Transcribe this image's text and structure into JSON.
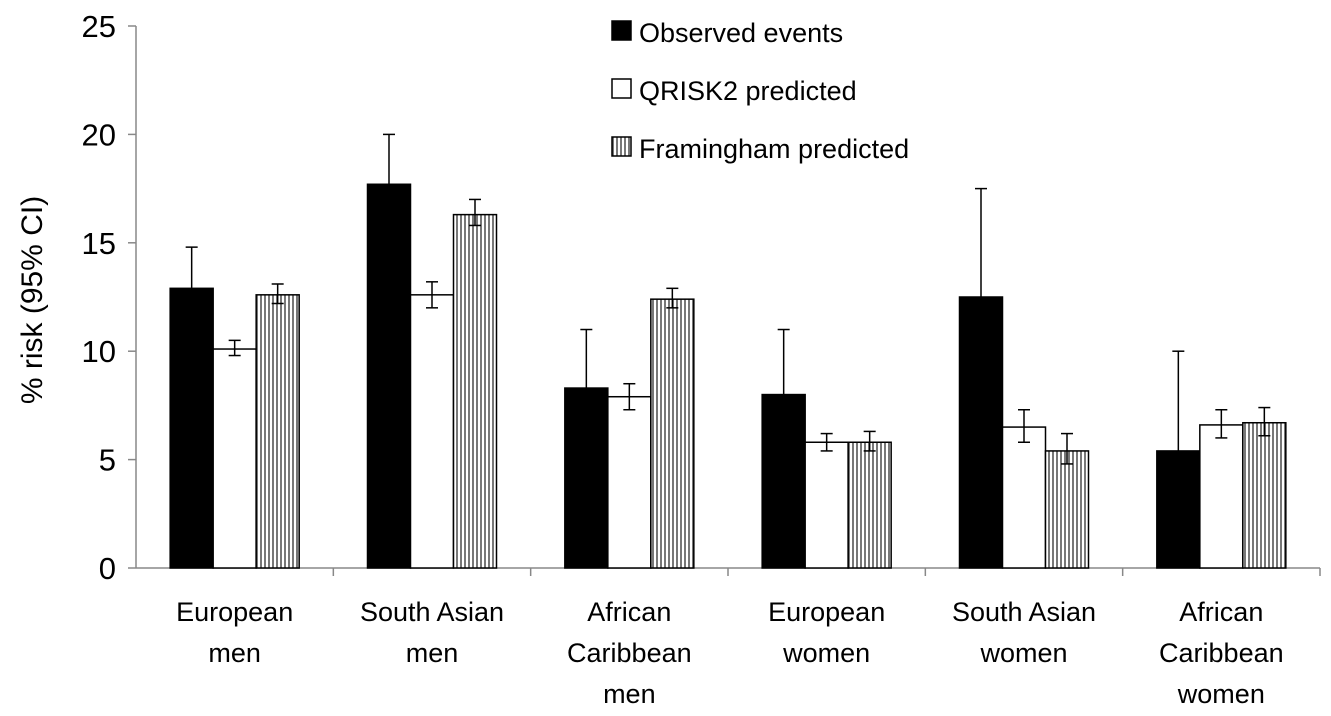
{
  "chart_data": {
    "type": "bar",
    "title": "",
    "xlabel": "",
    "ylabel": "% risk (95% CI)",
    "ylim": [
      0,
      25
    ],
    "yticks": [
      0,
      5,
      10,
      15,
      20,
      25
    ],
    "grid": false,
    "legend_position": "top-right",
    "categories": [
      [
        "European",
        "men"
      ],
      [
        "South Asian",
        "men"
      ],
      [
        "African",
        "Caribbean",
        "men"
      ],
      [
        "European",
        "women"
      ],
      [
        "South Asian",
        "women"
      ],
      [
        "African",
        "Caribbean",
        "women"
      ]
    ],
    "series": [
      {
        "name": "Observed events",
        "style": "solid",
        "color": "#000000",
        "values": [
          12.9,
          17.7,
          8.3,
          8.0,
          12.5,
          5.4
        ],
        "ci_low": [
          11.2,
          15.6,
          5.7,
          5.8,
          9.0,
          3.1
        ],
        "ci_high": [
          14.8,
          20.0,
          11.0,
          11.0,
          17.5,
          10.0
        ]
      },
      {
        "name": "QRISK2 predicted",
        "style": "white",
        "color": "#ffffff",
        "values": [
          10.1,
          12.6,
          7.9,
          5.8,
          6.5,
          6.6
        ],
        "ci_low": [
          9.8,
          12.0,
          7.3,
          5.4,
          5.8,
          6.0
        ],
        "ci_high": [
          10.5,
          13.2,
          8.5,
          6.2,
          7.3,
          7.3
        ]
      },
      {
        "name": "Framingham predicted",
        "style": "vertical-hatch",
        "color": "#888888",
        "values": [
          12.6,
          16.3,
          12.4,
          5.8,
          5.4,
          6.7
        ],
        "ci_low": [
          12.2,
          15.8,
          12.0,
          5.4,
          4.8,
          6.1
        ],
        "ci_high": [
          13.1,
          17.0,
          12.9,
          6.3,
          6.2,
          7.4
        ]
      }
    ]
  }
}
